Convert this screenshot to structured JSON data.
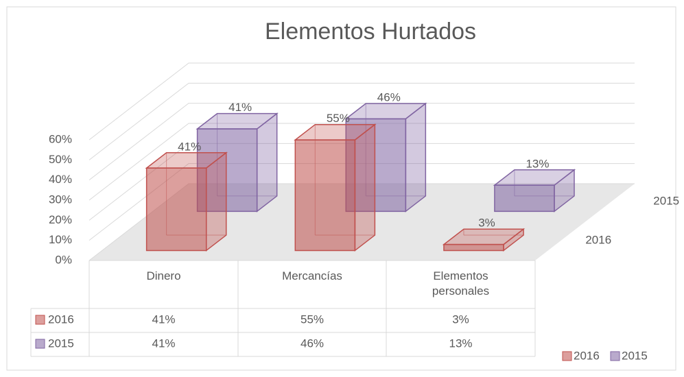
{
  "chart_data": {
    "type": "bar3d",
    "title": "Elementos Hurtados",
    "categories": [
      "Dinero",
      "Mercancías",
      "Elementos personales"
    ],
    "series": [
      {
        "name": "2016",
        "color": "#c0504d",
        "values": [
          41,
          55,
          3
        ],
        "value_labels": [
          "41%",
          "55%",
          "3%"
        ]
      },
      {
        "name": "2015",
        "color": "#8064a2",
        "values": [
          41,
          46,
          13
        ],
        "value_labels": [
          "41%",
          "46%",
          "13%"
        ]
      }
    ],
    "ylim": [
      0,
      60
    ],
    "yticks": [
      {
        "value": 0,
        "label": "0%"
      },
      {
        "value": 10,
        "label": "10%"
      },
      {
        "value": 20,
        "label": "20%"
      },
      {
        "value": 30,
        "label": "30%"
      },
      {
        "value": 40,
        "label": "40%"
      },
      {
        "value": 50,
        "label": "50%"
      },
      {
        "value": 60,
        "label": "60%"
      }
    ],
    "grid": true,
    "legend": "bottom-right"
  }
}
